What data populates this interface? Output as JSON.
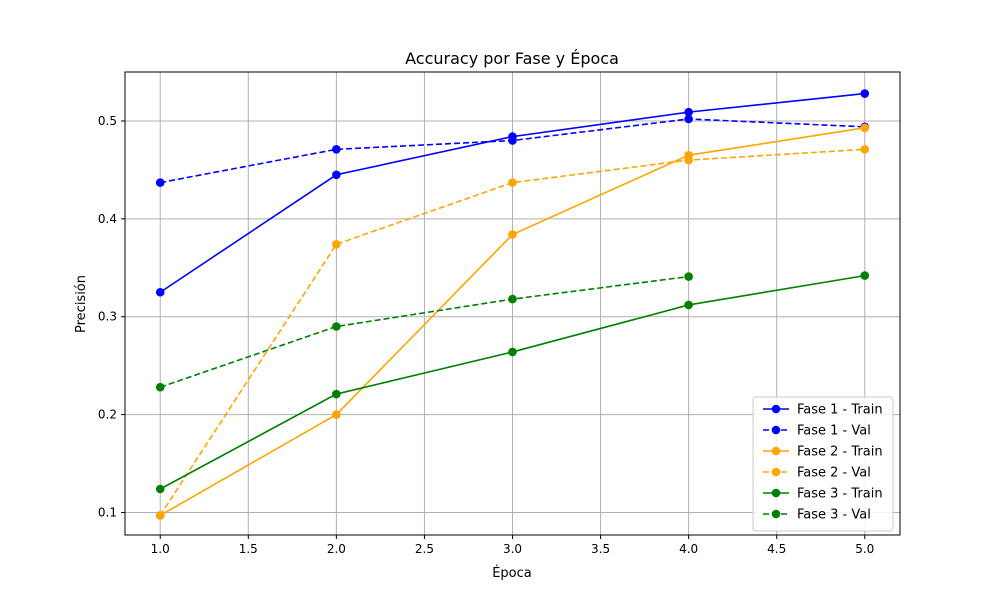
{
  "chart_data": {
    "type": "line",
    "title": "Accuracy por Fase y Época",
    "xlabel": "Época",
    "ylabel": "Precisión",
    "xlim": [
      0.8,
      5.2
    ],
    "ylim": [
      0.077,
      0.55
    ],
    "xticks": [
      1.0,
      1.5,
      2.0,
      2.5,
      3.0,
      3.5,
      4.0,
      4.5,
      5.0
    ],
    "xtick_labels": [
      "1.0",
      "1.5",
      "2.0",
      "2.5",
      "3.0",
      "3.5",
      "4.0",
      "4.5",
      "5.0"
    ],
    "yticks": [
      0.1,
      0.2,
      0.3,
      0.4,
      0.5
    ],
    "ytick_labels": [
      "0.1",
      "0.2",
      "0.3",
      "0.4",
      "0.5"
    ],
    "grid": true,
    "legend_position": "lower-right",
    "series": [
      {
        "name": "Fase 1 - Train",
        "color": "#0000ff",
        "dashed": false,
        "x": [
          1,
          2,
          3,
          4,
          5
        ],
        "y": [
          0.325,
          0.445,
          0.484,
          0.509,
          0.528
        ]
      },
      {
        "name": "Fase 1 - Val",
        "color": "#0000ff",
        "dashed": true,
        "x": [
          1,
          2,
          3,
          4,
          5
        ],
        "y": [
          0.437,
          0.471,
          0.48,
          0.502,
          0.494
        ]
      },
      {
        "name": "Fase 2 - Train",
        "color": "#ffa500",
        "dashed": false,
        "x": [
          1,
          2,
          3,
          4,
          5
        ],
        "y": [
          0.097,
          0.2,
          0.384,
          0.465,
          0.493
        ]
      },
      {
        "name": "Fase 2 - Val",
        "color": "#ffa500",
        "dashed": true,
        "x": [
          1,
          2,
          3,
          4,
          5
        ],
        "y": [
          0.097,
          0.374,
          0.437,
          0.46,
          0.471
        ]
      },
      {
        "name": "Fase 3 - Train",
        "color": "#008000",
        "dashed": false,
        "x": [
          1,
          2,
          3,
          4,
          5
        ],
        "y": [
          0.124,
          0.221,
          0.264,
          0.312,
          0.342
        ]
      },
      {
        "name": "Fase 3 - Val",
        "color": "#008000",
        "dashed": true,
        "x": [
          1,
          2,
          3,
          4
        ],
        "y": [
          0.228,
          0.29,
          0.318,
          0.341
        ]
      }
    ]
  }
}
